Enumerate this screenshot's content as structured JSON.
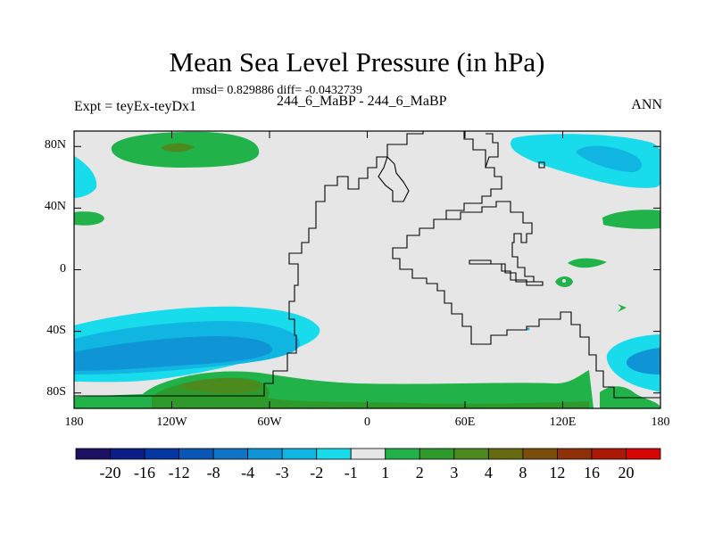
{
  "title": "Mean Sea Level Pressure (in hPa)",
  "stats_line": "rmsd= 0.829886 diff= -0.0432739",
  "left_label": "Expt = teyEx-teyDx1",
  "center_label": "244_6_MaBP - 244_6_MaBP",
  "right_label": "ANN",
  "lat_ticks": [
    "80N",
    "40N",
    "0",
    "40S",
    "80S"
  ],
  "lon_ticks": [
    "180",
    "120W",
    "60W",
    "0",
    "60E",
    "120E",
    "180"
  ],
  "colorbar": {
    "labels": [
      "-20",
      "-16",
      "-12",
      "-8",
      "-4",
      "-3",
      "-2",
      "-1",
      "1",
      "2",
      "3",
      "4",
      "8",
      "12",
      "16",
      "20"
    ],
    "colors": [
      "#1d1163",
      "#0b1e88",
      "#0537a3",
      "#0a56b6",
      "#0f74c6",
      "#0f95d6",
      "#10b5e2",
      "#18dbeb",
      "#e6e6e6",
      "#21b34a",
      "#2e9a2c",
      "#4c8a1d",
      "#666b11",
      "#7a4d0c",
      "#8f3108",
      "#ab1906",
      "#d50603"
    ]
  },
  "chart_data": {
    "type": "heatmap",
    "title": "Mean Sea Level Pressure (in hPa)",
    "subtitle": "rmsd= 0.829886 diff= -0.0432739",
    "xlabel": "",
    "ylabel": "",
    "xlim": [
      -180,
      180
    ],
    "ylim": [
      -90,
      90
    ],
    "background_level": "-1 to 1",
    "anomaly_regions": [
      {
        "name": "north-pacific-high",
        "center_lon": -120,
        "center_lat": 70,
        "value_range": "1 to 3"
      },
      {
        "name": "north-pacific-core",
        "center_lon": -117,
        "center_lat": 70,
        "value_range": "3 to 4"
      },
      {
        "name": "arctic-low",
        "center_lon": 150,
        "center_lat": 65,
        "value_range": "-3 to -1"
      },
      {
        "name": "arctic-low-core",
        "center_lon": 155,
        "center_lat": 63,
        "value_range": "-4 to -3"
      },
      {
        "name": "southern-ocean-low",
        "center_lon": -120,
        "center_lat": -52,
        "value_range": "-3 to -1"
      },
      {
        "name": "southern-ocean-low-core",
        "center_lon": -130,
        "center_lat": -55,
        "value_range": "-4 to -3"
      },
      {
        "name": "antarctic-high",
        "center_lon": 0,
        "center_lat": -78,
        "value_range": "1 to 3"
      },
      {
        "name": "antarctic-high-core",
        "center_lon": -90,
        "center_lat": -75,
        "value_range": "3 to 4"
      },
      {
        "name": "southeast-low",
        "center_lon": 165,
        "center_lat": -60,
        "value_range": "-3 to -1"
      },
      {
        "name": "subtropical-high-west",
        "center_lon": -173,
        "center_lat": 28,
        "value_range": "1 to 2"
      },
      {
        "name": "subtropical-high-east",
        "center_lon": 167,
        "center_lat": 28,
        "value_range": "1 to 2"
      },
      {
        "name": "tropical-high",
        "center_lon": 135,
        "center_lat": 0,
        "value_range": "1 to 2"
      }
    ]
  }
}
